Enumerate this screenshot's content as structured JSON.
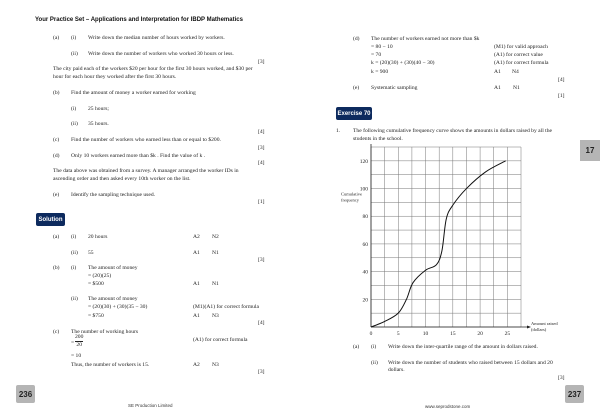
{
  "header": {
    "title": "Your Practice Set – Applications and Interpretation for IBDP Mathematics"
  },
  "left": {
    "q": {
      "a_label": "(a)",
      "a_i": "(i)",
      "a_i_text": "Write down the median number of hours worked by workers.",
      "a_ii": "(ii)",
      "a_ii_text": "Write down the number of workers who worked 30 hours or less.",
      "a_marks": "[3]",
      "para1_l1": "The city paid each of the workers $20 per hour for the first 30 hours worked, and $30 per",
      "para1_l2": "hour for each hour they worked after the first 30 hours.",
      "b_label": "(b)",
      "b_text": "Find the amount of money a worker earned for working",
      "b_i": "(i)",
      "b_i_text": "25 hours;",
      "b_ii": "(ii)",
      "b_ii_text": "35 hours.",
      "b_marks": "[4]",
      "c_label": "(c)",
      "c_text": "Find the number of workers who earned less than or equal to $200.",
      "c_marks": "[3]",
      "d_label": "(d)",
      "d_text": "Only 10 workers earned more than $k . Find the value of k .",
      "d_marks": "[4]",
      "para2_l1": "The data above was obtained from a survey. A manager arranged the worker IDs in",
      "para2_l2": "ascending order and then asked every 10th worker on the list.",
      "e_label": "(e)",
      "e_text": "Identify the sampling technique used.",
      "e_marks": "[1]"
    },
    "solution_label": "Solution",
    "sol": {
      "a_label": "(a)",
      "a_i": "(i)",
      "a_i_text": "20 hours",
      "a_i_m1": "A2",
      "a_i_m2": "N2",
      "a_ii": "(ii)",
      "a_ii_text": "55",
      "a_ii_m1": "A1",
      "a_ii_m2": "N1",
      "a_marks": "[3]",
      "b_label": "(b)",
      "b_i": "(i)",
      "b_i_l1": "The amount of money",
      "b_i_l2": "= (20)(25)",
      "b_i_l3": "= $500",
      "b_i_m1": "A1",
      "b_i_m2": "N1",
      "b_ii": "(ii)",
      "b_ii_l1": "The amount of money",
      "b_ii_l2": "= (20)(30) + (30)(35 − 30)",
      "b_ii_l3": "= $750",
      "b_ii_m0": "(M1)(A1) for correct formula",
      "b_ii_m1": "A1",
      "b_ii_m2": "N3",
      "b_marks": "[4]",
      "c_label": "(c)",
      "c_l1": "The number of working hours",
      "c_eq": "=",
      "c_num": "200",
      "c_den": "20",
      "c_m0": "(A1) for correct formula",
      "c_l3": "= 10",
      "c_l4": "Thus, the number of workers is 15.",
      "c_m1": "A2",
      "c_m2": "N3",
      "c_marks": "[3]"
    },
    "page_number": "236",
    "footer": "SE Production Limited"
  },
  "right": {
    "sol": {
      "d_label": "(d)",
      "d_l1": "The number of workers earned not more than $k",
      "d_l2": "= 80 − 10",
      "d_m2": "(M1) for valid approach",
      "d_l3": "= 70",
      "d_m3": "(A1) for correct value",
      "d_l4": "k = (20)(30) + (30)(40 − 30)",
      "d_m4": "(A1) for correct formula",
      "d_l5": "k = 900",
      "d_m5a": "A1",
      "d_m5b": "N4",
      "d_marks": "[4]",
      "e_label": "(e)",
      "e_text": "Systematic sampling",
      "e_m1": "A1",
      "e_m2": "N1",
      "e_marks": "[1]"
    },
    "exercise_label": "Exercise 70",
    "q1": {
      "num": "1.",
      "l1": "The following cumulative frequency curve shows the amounts in dollars raised by all the",
      "l2": "students in the school.",
      "a_label": "(a)",
      "a_i": "(i)",
      "a_i_text": "Write down the inter-quartile range of the amount in dollars raised.",
      "a_ii": "(ii)",
      "a_ii_l1": "Write down the number of students who raised between 15 dollars and 20",
      "a_ii_l2": "dollars.",
      "a_marks": "[3]"
    },
    "chapter_tab": "17",
    "page_number": "237",
    "footer": "www.seprodstone.com"
  },
  "chart_data": {
    "type": "line",
    "title": "",
    "xlabel": "Amount raised (dollars)",
    "ylabel": "Cumulative frequency",
    "xlim": [
      0,
      27.5
    ],
    "ylim": [
      0,
      130
    ],
    "x_ticks": [
      0,
      5,
      10,
      15,
      20,
      25
    ],
    "y_ticks": [
      20,
      40,
      60,
      80,
      100,
      120
    ],
    "x_tick_labels": [
      "0",
      "5",
      "10",
      "15",
      "20",
      "25"
    ],
    "y_tick_labels": [
      "20",
      "40",
      "60",
      "80",
      "100",
      "120"
    ],
    "grid": true,
    "x_grid_step": 2.5,
    "y_grid_step": 10,
    "points": [
      [
        0,
        0
      ],
      [
        2.5,
        4
      ],
      [
        5,
        10
      ],
      [
        6.5,
        20
      ],
      [
        7.7,
        32
      ],
      [
        10,
        41
      ],
      [
        12,
        45
      ],
      [
        13,
        55
      ],
      [
        13.8,
        78
      ],
      [
        15,
        88
      ],
      [
        17.5,
        100
      ],
      [
        21,
        112
      ],
      [
        24.7,
        120
      ]
    ]
  }
}
